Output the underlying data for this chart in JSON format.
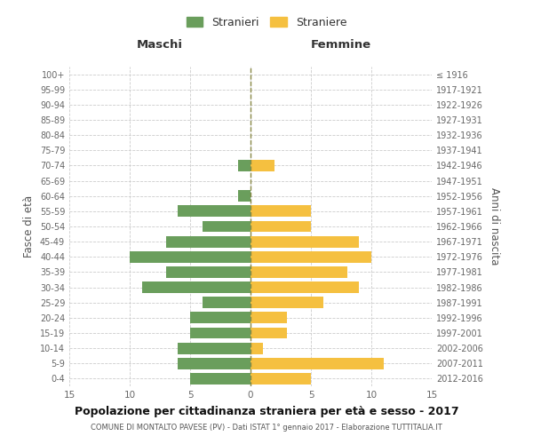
{
  "age_groups": [
    "0-4",
    "5-9",
    "10-14",
    "15-19",
    "20-24",
    "25-29",
    "30-34",
    "35-39",
    "40-44",
    "45-49",
    "50-54",
    "55-59",
    "60-64",
    "65-69",
    "70-74",
    "75-79",
    "80-84",
    "85-89",
    "90-94",
    "95-99",
    "100+"
  ],
  "birth_years": [
    "2012-2016",
    "2007-2011",
    "2002-2006",
    "1997-2001",
    "1992-1996",
    "1987-1991",
    "1982-1986",
    "1977-1981",
    "1972-1976",
    "1967-1971",
    "1962-1966",
    "1957-1961",
    "1952-1956",
    "1947-1951",
    "1942-1946",
    "1937-1941",
    "1932-1936",
    "1927-1931",
    "1922-1926",
    "1917-1921",
    "≤ 1916"
  ],
  "maschi": [
    5,
    6,
    6,
    5,
    5,
    4,
    9,
    7,
    10,
    7,
    4,
    6,
    1,
    0,
    1,
    0,
    0,
    0,
    0,
    0,
    0
  ],
  "femmine": [
    5,
    11,
    1,
    3,
    3,
    6,
    9,
    8,
    10,
    9,
    5,
    5,
    0,
    0,
    2,
    0,
    0,
    0,
    0,
    0,
    0
  ],
  "color_maschi": "#6a9e5c",
  "color_femmine": "#f5c040",
  "title": "Popolazione per cittadinanza straniera per età e sesso - 2017",
  "subtitle": "COMUNE DI MONTALTO PAVESE (PV) - Dati ISTAT 1° gennaio 2017 - Elaborazione TUTTITALIA.IT",
  "header_left": "Maschi",
  "header_right": "Femmine",
  "ylabel_left": "Fasce di età",
  "ylabel_right": "Anni di nascita",
  "legend_maschi": "Stranieri",
  "legend_femmine": "Straniere",
  "xlim": 15,
  "background_color": "#ffffff",
  "grid_color": "#cccccc"
}
